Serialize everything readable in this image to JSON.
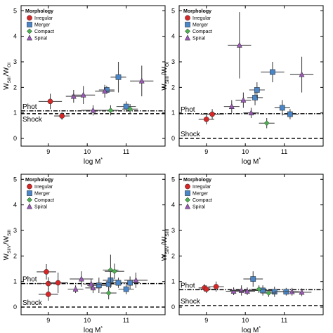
{
  "legend": {
    "title": "Morphology",
    "items": [
      {
        "key": "irregular",
        "label": "Irregular",
        "color": "#d62728",
        "shape": "circle"
      },
      {
        "key": "merger",
        "label": "Merger",
        "color": "#4a86c8",
        "shape": "square"
      },
      {
        "key": "compact",
        "label": "Compact",
        "color": "#4caf50",
        "shape": "diamond"
      },
      {
        "key": "spiral",
        "label": "Spiral",
        "color": "#9b59b6",
        "shape": "triangle"
      }
    ]
  },
  "chart_data": [
    {
      "type": "scatter",
      "panel": "top-left",
      "xlabel": "log M*",
      "ylabel": "W_SiII / W_OI",
      "xlim": [
        8.3,
        12.0
      ],
      "ylim": [
        -0.3,
        5.2
      ],
      "xticks": [
        9,
        10,
        11
      ],
      "yticks": [
        0,
        1,
        2,
        3,
        4,
        5
      ],
      "ref_lines": [
        {
          "label": "Phot",
          "y": 1.08,
          "style": "dashdot"
        },
        {
          "label": "Shock",
          "y": 0.97,
          "style": "dashed"
        }
      ],
      "series": [
        {
          "category": "irregular",
          "points": [
            {
              "x": 9.05,
              "y": 1.45,
              "xerr": 0.3,
              "yerr": 0.3
            },
            {
              "x": 9.35,
              "y": 0.88,
              "xerr": 0.2,
              "yerr": 0.15
            }
          ]
        },
        {
          "category": "merger",
          "points": [
            {
              "x": 10.5,
              "y": 1.9,
              "xerr": 0.2,
              "yerr": 0.15
            },
            {
              "x": 10.8,
              "y": 2.4,
              "xerr": 0.2,
              "yerr": 0.6
            },
            {
              "x": 11.0,
              "y": 1.25,
              "xerr": 0.25,
              "yerr": 0.2
            }
          ]
        },
        {
          "category": "compact",
          "points": [
            {
              "x": 10.6,
              "y": 1.1,
              "xerr": 0.2,
              "yerr": 0.2
            },
            {
              "x": 11.1,
              "y": 1.15,
              "xerr": 0.2,
              "yerr": 0.2
            }
          ]
        },
        {
          "category": "spiral",
          "points": [
            {
              "x": 9.65,
              "y": 1.65,
              "xerr": 0.2,
              "yerr": 0.25
            },
            {
              "x": 9.9,
              "y": 1.7,
              "xerr": 0.3,
              "yerr": 0.35
            },
            {
              "x": 10.15,
              "y": 1.1,
              "xerr": 0.3,
              "yerr": 0.2
            },
            {
              "x": 10.45,
              "y": 1.85,
              "xerr": 0.25,
              "yerr": 0.25
            },
            {
              "x": 11.4,
              "y": 2.25,
              "xerr": 0.3,
              "yerr": 0.6
            }
          ]
        }
      ]
    },
    {
      "type": "scatter",
      "panel": "top-right",
      "xlabel": "log M*",
      "ylabel": "W_SiIII / W_OI",
      "xlim": [
        8.3,
        12.0
      ],
      "ylim": [
        -0.3,
        5.2
      ],
      "xticks": [
        9,
        10,
        11
      ],
      "yticks": [
        0,
        1,
        2,
        3,
        4,
        5
      ],
      "ref_lines": [
        {
          "label": "Phot",
          "y": 0.97,
          "style": "dashdot"
        },
        {
          "label": "Shock",
          "y": 0.0,
          "style": "dashed"
        }
      ],
      "series": [
        {
          "category": "irregular",
          "points": [
            {
              "x": 9.0,
              "y": 0.75,
              "xerr": 0.2,
              "yerr": 0.2
            },
            {
              "x": 9.15,
              "y": 0.95,
              "xerr": 0.3,
              "yerr": 0.2
            }
          ]
        },
        {
          "category": "merger",
          "points": [
            {
              "x": 10.25,
              "y": 1.6,
              "xerr": 0.2,
              "yerr": 0.3
            },
            {
              "x": 10.3,
              "y": 1.9,
              "xerr": 0.2,
              "yerr": 0.3
            },
            {
              "x": 10.7,
              "y": 2.6,
              "xerr": 0.3,
              "yerr": 0.4
            },
            {
              "x": 10.95,
              "y": 1.2,
              "xerr": 0.2,
              "yerr": 0.3
            },
            {
              "x": 11.15,
              "y": 0.95,
              "xerr": 0.2,
              "yerr": 0.2
            }
          ]
        },
        {
          "category": "compact",
          "points": [
            {
              "x": 10.55,
              "y": 0.6,
              "xerr": 0.2,
              "yerr": 0.2
            }
          ]
        },
        {
          "category": "spiral",
          "points": [
            {
              "x": 9.65,
              "y": 1.25,
              "xerr": 0.2,
              "yerr": 0.25
            },
            {
              "x": 9.85,
              "y": 3.65,
              "xerr": 0.3,
              "yerr": 1.3
            },
            {
              "x": 9.95,
              "y": 1.5,
              "xerr": 0.2,
              "yerr": 0.3
            },
            {
              "x": 10.15,
              "y": 1.0,
              "xerr": 0.2,
              "yerr": 0.2
            },
            {
              "x": 11.45,
              "y": 2.5,
              "xerr": 0.3,
              "yerr": 0.7
            }
          ]
        }
      ]
    },
    {
      "type": "scatter",
      "panel": "bottom-left",
      "xlabel": "log M*",
      "ylabel": "W_SiIV / W_SiII",
      "xlim": [
        8.3,
        12.0
      ],
      "ylim": [
        -0.3,
        5.2
      ],
      "xticks": [
        9,
        10,
        11
      ],
      "yticks": [
        0,
        1,
        2,
        3,
        4,
        5
      ],
      "ref_lines": [
        {
          "label": "Phot",
          "y": 0.92,
          "style": "dashdot"
        },
        {
          "label": "Shock",
          "y": 0.0,
          "style": "dashed"
        }
      ],
      "series": [
        {
          "category": "irregular",
          "points": [
            {
              "x": 8.95,
              "y": 1.38,
              "xerr": 0.25,
              "yerr": 0.3
            },
            {
              "x": 9.0,
              "y": 0.5,
              "xerr": 0.25,
              "yerr": 0.25
            },
            {
              "x": 9.0,
              "y": 0.92,
              "xerr": 0.3,
              "yerr": 0.25
            },
            {
              "x": 9.25,
              "y": 0.95,
              "xerr": 0.25,
              "yerr": 0.4
            }
          ]
        },
        {
          "category": "merger",
          "points": [
            {
              "x": 10.3,
              "y": 0.85,
              "xerr": 0.3,
              "yerr": 0.3
            },
            {
              "x": 10.55,
              "y": 0.9,
              "xerr": 0.25,
              "yerr": 0.25
            },
            {
              "x": 10.6,
              "y": 1.05,
              "xerr": 0.2,
              "yerr": 0.3
            },
            {
              "x": 10.8,
              "y": 0.95,
              "xerr": 0.2,
              "yerr": 0.2
            },
            {
              "x": 11.0,
              "y": 0.7,
              "xerr": 0.2,
              "yerr": 0.2
            },
            {
              "x": 11.1,
              "y": 0.95,
              "xerr": 0.25,
              "yerr": 0.25
            }
          ]
        },
        {
          "category": "compact",
          "points": [
            {
              "x": 10.55,
              "y": 0.55,
              "xerr": 0.2,
              "yerr": 0.25
            },
            {
              "x": 10.6,
              "y": 1.45,
              "xerr": 0.2,
              "yerr": 0.6
            },
            {
              "x": 10.7,
              "y": 1.4,
              "xerr": 0.25,
              "yerr": 0.3
            }
          ]
        },
        {
          "category": "spiral",
          "points": [
            {
              "x": 9.7,
              "y": 0.7,
              "xerr": 0.2,
              "yerr": 0.15
            },
            {
              "x": 9.85,
              "y": 1.1,
              "xerr": 0.3,
              "yerr": 0.3
            },
            {
              "x": 10.1,
              "y": 0.9,
              "xerr": 0.2,
              "yerr": 0.2
            },
            {
              "x": 10.15,
              "y": 0.75,
              "xerr": 0.2,
              "yerr": 0.2
            },
            {
              "x": 11.25,
              "y": 1.05,
              "xerr": 0.3,
              "yerr": 0.3
            }
          ]
        }
      ]
    },
    {
      "type": "scatter",
      "panel": "bottom-right",
      "xlabel": "log M*",
      "ylabel": "W_SiIV / W_SiIII",
      "xlim": [
        8.3,
        12.0
      ],
      "ylim": [
        -0.3,
        5.2
      ],
      "xticks": [
        9,
        10,
        11
      ],
      "yticks": [
        0,
        1,
        2,
        3,
        4,
        5
      ],
      "ref_lines": [
        {
          "label": "Phot",
          "y": 0.68,
          "style": "dashdot"
        },
        {
          "label": "Shock",
          "y": 0.06,
          "style": "dashed"
        }
      ],
      "series": [
        {
          "category": "irregular",
          "points": [
            {
              "x": 8.95,
              "y": 0.75,
              "xerr": 0.15,
              "yerr": 0.15
            },
            {
              "x": 9.0,
              "y": 0.7,
              "xerr": 0.2,
              "yerr": 0.15
            },
            {
              "x": 9.25,
              "y": 0.8,
              "xerr": 0.2,
              "yerr": 0.2
            }
          ]
        },
        {
          "category": "merger",
          "points": [
            {
              "x": 10.2,
              "y": 1.1,
              "xerr": 0.25,
              "yerr": 0.3
            },
            {
              "x": 10.45,
              "y": 0.65,
              "xerr": 0.3,
              "yerr": 0.2
            },
            {
              "x": 10.75,
              "y": 0.6,
              "xerr": 0.25,
              "yerr": 0.2
            },
            {
              "x": 11.05,
              "y": 0.6,
              "xerr": 0.3,
              "yerr": 0.15
            }
          ]
        },
        {
          "category": "compact",
          "points": [
            {
              "x": 10.35,
              "y": 0.7,
              "xerr": 0.2,
              "yerr": 0.15
            },
            {
              "x": 10.6,
              "y": 0.55,
              "xerr": 0.2,
              "yerr": 0.15
            }
          ]
        },
        {
          "category": "spiral",
          "points": [
            {
              "x": 9.7,
              "y": 0.62,
              "xerr": 0.2,
              "yerr": 0.15
            },
            {
              "x": 9.9,
              "y": 0.65,
              "xerr": 0.3,
              "yerr": 0.2
            },
            {
              "x": 10.05,
              "y": 0.62,
              "xerr": 0.2,
              "yerr": 0.15
            },
            {
              "x": 11.2,
              "y": 0.6,
              "xerr": 0.2,
              "yerr": 0.15
            },
            {
              "x": 11.45,
              "y": 0.58,
              "xerr": 0.25,
              "yerr": 0.15
            }
          ]
        }
      ]
    }
  ]
}
